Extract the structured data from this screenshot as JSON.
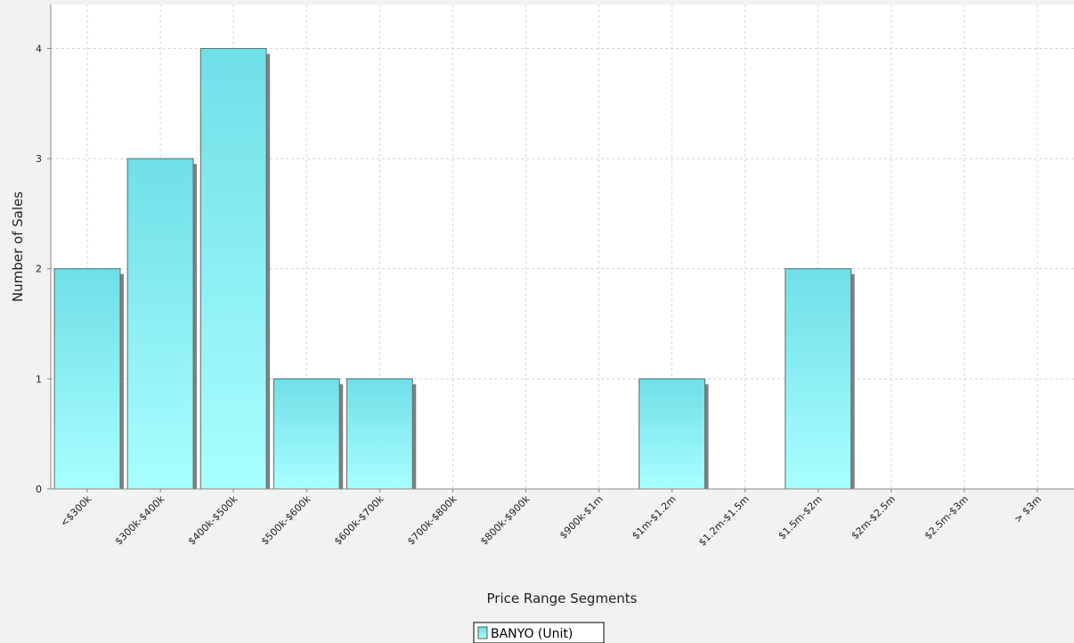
{
  "chart_data": {
    "type": "bar",
    "categories": [
      "<$300k",
      "$300k-$400k",
      "$400k-$500k",
      "$500k-$600k",
      "$600k-$700k",
      "$700k-$800k",
      "$800k-$900k",
      "$900k-$1m",
      "$1m-$1.2m",
      "$1.2m-$1.5m",
      "$1.5m-$2m",
      "$2m-$2.5m",
      "$2.5m-$3m",
      "> $3m"
    ],
    "series": [
      {
        "name": "BANYO (Unit)",
        "values": [
          2,
          3,
          4,
          1,
          1,
          0,
          0,
          0,
          1,
          0,
          2,
          0,
          0,
          0
        ]
      }
    ],
    "xlabel": "Price Range Segments",
    "ylabel": "Number of Sales",
    "ylim": [
      0,
      4.4
    ],
    "yticks": [
      0,
      1,
      2,
      3,
      4
    ],
    "grid": true,
    "legend_position": "bottom-center",
    "colors": {
      "bar_top": "#6fdfe7",
      "bar_bottom": "#a8ffff",
      "bar_stroke": "#666666",
      "bar_shadow": "#808080",
      "plot_bg": "#ffffff",
      "page_bg": "#f2f2f2",
      "grid": "#d4d4d4"
    }
  }
}
